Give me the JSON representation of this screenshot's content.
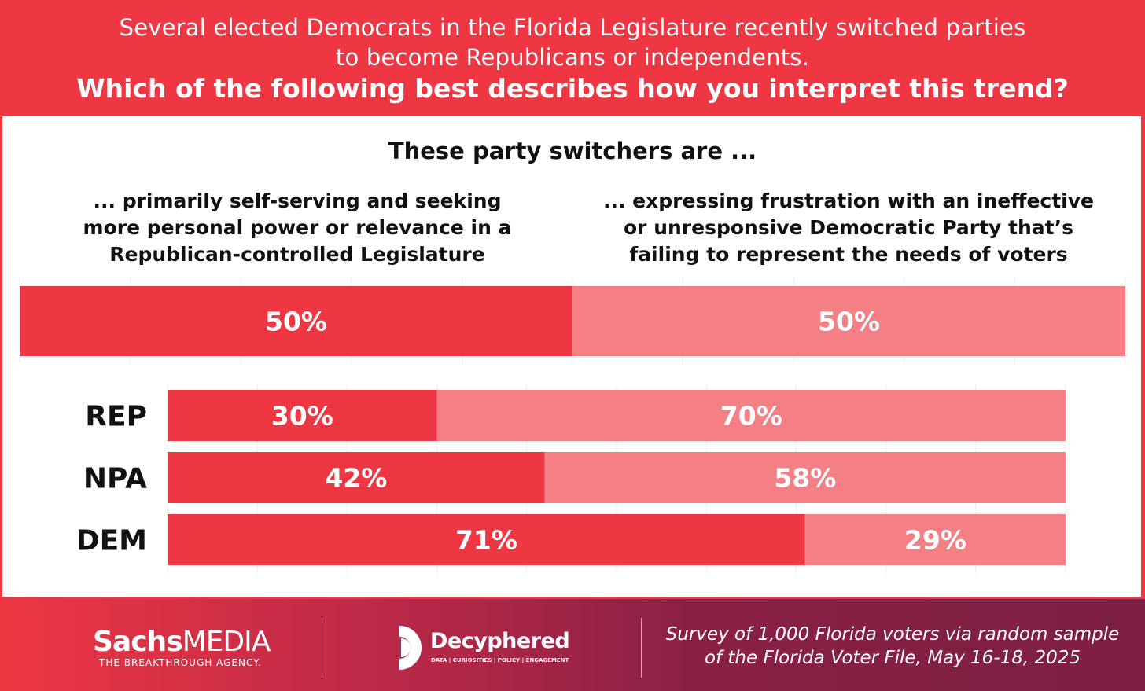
{
  "header": {
    "line1": "Several elected Democrats in the Florida Legislature recently switched parties",
    "line2": "to become Republicans or independents.",
    "question": "Which of the following best describes how you interpret this trend?"
  },
  "chart_data": {
    "type": "bar",
    "stacked": true,
    "orientation": "horizontal",
    "title": "These party switchers are ...",
    "legend": [
      {
        "name": "self_serving",
        "lines": [
          "... primarily self-serving and seeking",
          "more personal power or relevance in a",
          "Republican-controlled Legislature"
        ],
        "color": "#ee3743"
      },
      {
        "name": "frustration",
        "lines": [
          "... expressing frustration with an ineffective",
          "or unresponsive Democratic Party that’s",
          "failing to represent the needs of voters"
        ],
        "color": "#f47f84"
      }
    ],
    "overall": {
      "values": [
        50,
        50
      ],
      "labels": [
        "50%",
        "50%"
      ]
    },
    "categories": [
      "REP",
      "NPA",
      "DEM"
    ],
    "series": [
      {
        "name": "self_serving",
        "values": [
          30,
          42,
          71
        ],
        "labels": [
          "30%",
          "42%",
          "71%"
        ]
      },
      {
        "name": "frustration",
        "values": [
          70,
          58,
          29
        ],
        "labels": [
          "70%",
          "58%",
          "29%"
        ]
      }
    ],
    "xlim": [
      0,
      100
    ],
    "grid": true
  },
  "footer": {
    "sachs_bold": "Sachs",
    "sachs_light": "MEDIA",
    "sachs_tagline": "THE BREAKTHROUGH AGENCY.",
    "decyphered": "Decyphered",
    "decyphered_tagline": "DATA | CURIOSITIES | POLICY | ENGAGEMENT",
    "survey_line1": "Survey of 1,000 Florida voters via random sample",
    "survey_line2": "of the Florida Voter File, May 16-18, 2025"
  }
}
